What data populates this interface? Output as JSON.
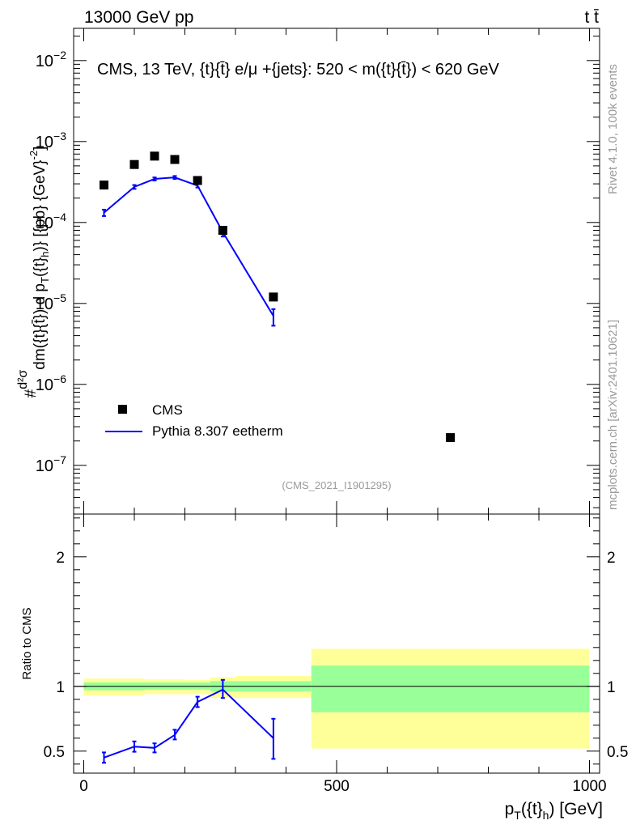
{
  "header": {
    "left": "13000 GeV pp",
    "right": "t t̄"
  },
  "side": {
    "rivet": "Rivet 4.1.0,  100k events",
    "mcplots": "mcplots.cern.ch [arXiv:2401.10621]"
  },
  "chart_data": [
    {
      "type": "scatter",
      "panel": "main",
      "title": "CMS, 13 TeV, {t}{t̄} e/μ +{jets}: 520 < m({t}{t̄}) < 620 GeV",
      "watermark": "(CMS_2021_I1901295)",
      "ylabel": "#d²σ / dm({t}{t̄}) d p_T({t}_h) [{pb} {GeV}⁻²]",
      "ylabel_parts": {
        "prefix": "#",
        "num": "d²σ",
        "den": "dm({t}{t̄}) d p",
        "sub1": "T",
        "mid": "({t}",
        "sub2": "h",
        "suffix": ")} [{pb} {GeV}",
        "sup": "-2",
        "end": "]"
      },
      "yscale": "log",
      "ylim": [
        2.5e-08,
        0.025
      ],
      "xlim": [
        -20,
        1020
      ],
      "yticks": [
        {
          "value": 1e-07,
          "base": "10",
          "exp": "−7"
        },
        {
          "value": 1e-06,
          "base": "10",
          "exp": "−6"
        },
        {
          "value": 1e-05,
          "base": "10",
          "exp": "−5"
        },
        {
          "value": 0.0001,
          "base": "10",
          "exp": "−4"
        },
        {
          "value": 0.001,
          "base": "10",
          "exp": "−3"
        },
        {
          "value": 0.01,
          "base": "10",
          "exp": "−2"
        }
      ],
      "legend_position": "bottom-left",
      "series": [
        {
          "name": "CMS",
          "kind": "points",
          "color": "#000000",
          "x": [
            40,
            100,
            140,
            180,
            225,
            275,
            375,
            725
          ],
          "y": [
            0.00029,
            0.00052,
            0.00066,
            0.0006,
            0.00033,
            8e-05,
            1.2e-05,
            2.2e-07
          ]
        },
        {
          "name": "Pythia 8.307 eetherm",
          "kind": "line",
          "color": "#0000ff",
          "x": [
            40,
            100,
            140,
            180,
            225,
            275,
            375
          ],
          "y": [
            0.000132,
            0.000275,
            0.000345,
            0.00036,
            0.000285,
            7.6e-05,
            7e-06
          ],
          "err_low": [
            0.00012,
            0.00026,
            0.00033,
            0.000345,
            0.00027,
            6.7e-05,
            5.3e-06
          ],
          "err_high": [
            0.000144,
            0.00029,
            0.00036,
            0.000375,
            0.0003,
            8.5e-05,
            8.5e-06
          ]
        }
      ]
    },
    {
      "type": "line",
      "panel": "ratio",
      "ylabel": "Ratio to CMS",
      "xlabel": "p_T({t}_h) [GeV]",
      "xlabel_parts": {
        "main": "p",
        "sub1": "T",
        "mid": "({t}",
        "sub2": "h",
        "end": ") [GeV]"
      },
      "ylim": [
        0.33,
        2.33
      ],
      "xlim": [
        -20,
        1020
      ],
      "yticks": [
        0.5,
        1,
        2
      ],
      "ytick_labels": [
        "0.5",
        "1",
        "2"
      ],
      "xticks": [
        0,
        500,
        1000
      ],
      "xtick_labels": [
        "0",
        "500",
        "1000"
      ],
      "reference": 1,
      "bands": [
        {
          "x0": 0,
          "x1": 80,
          "green": [
            0.97,
            1.03
          ],
          "yellow": [
            0.93,
            1.06
          ]
        },
        {
          "x0": 80,
          "x1": 120,
          "green": [
            0.97,
            1.03
          ],
          "yellow": [
            0.93,
            1.06
          ]
        },
        {
          "x0": 120,
          "x1": 160,
          "green": [
            0.975,
            1.03
          ],
          "yellow": [
            0.94,
            1.055
          ]
        },
        {
          "x0": 160,
          "x1": 200,
          "green": [
            0.975,
            1.03
          ],
          "yellow": [
            0.94,
            1.055
          ]
        },
        {
          "x0": 200,
          "x1": 250,
          "green": [
            0.975,
            1.03
          ],
          "yellow": [
            0.94,
            1.05
          ]
        },
        {
          "x0": 250,
          "x1": 300,
          "green": [
            0.96,
            1.04
          ],
          "yellow": [
            0.91,
            1.07
          ]
        },
        {
          "x0": 300,
          "x1": 450,
          "green": [
            0.96,
            1.04
          ],
          "yellow": [
            0.91,
            1.08
          ]
        },
        {
          "x0": 450,
          "x1": 1000,
          "green": [
            0.8,
            1.16
          ],
          "yellow": [
            0.52,
            1.29
          ]
        }
      ],
      "series": [
        {
          "name": "Pythia 8.307 eetherm",
          "color": "#0000ff",
          "x": [
            40,
            100,
            140,
            180,
            225,
            275,
            375
          ],
          "y": [
            0.45,
            0.535,
            0.525,
            0.625,
            0.88,
            0.975,
            0.6
          ],
          "err_low": [
            0.41,
            0.495,
            0.49,
            0.59,
            0.84,
            0.91,
            0.44
          ],
          "err_high": [
            0.49,
            0.575,
            0.56,
            0.665,
            0.92,
            1.05,
            0.75
          ]
        }
      ]
    }
  ]
}
